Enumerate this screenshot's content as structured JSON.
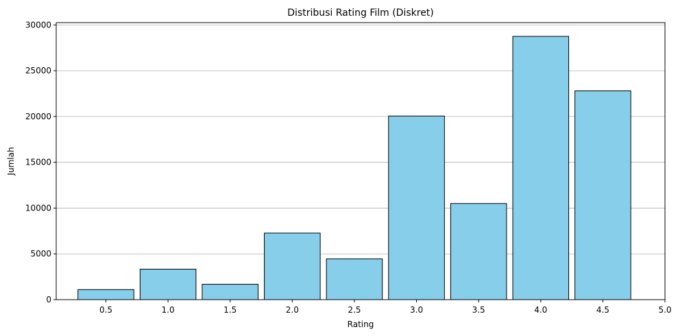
{
  "chart_data": {
    "type": "bar",
    "title": "Distribusi Rating Film (Diskret)",
    "xlabel": "Rating",
    "ylabel": "Jumlah",
    "x": [
      0.5,
      1.0,
      1.5,
      2.0,
      2.5,
      3.0,
      3.5,
      4.0,
      4.5
    ],
    "values": [
      1100,
      3330,
      1680,
      7270,
      4450,
      20050,
      10500,
      28750,
      22800
    ],
    "bar_width": 0.45,
    "xlim": [
      0.1,
      5.0
    ],
    "ylim": [
      0,
      30250
    ],
    "xticks": [
      "0.5",
      "1.0",
      "1.5",
      "2.0",
      "2.5",
      "3.0",
      "3.5",
      "4.0",
      "4.5",
      "5.0"
    ],
    "yticks": [
      "0",
      "5000",
      "10000",
      "15000",
      "20000",
      "25000",
      "30000"
    ],
    "grid": "y",
    "colors": {
      "bar": "#87ceeb",
      "edge": "#000000",
      "grid": "#b0b0b0"
    }
  }
}
